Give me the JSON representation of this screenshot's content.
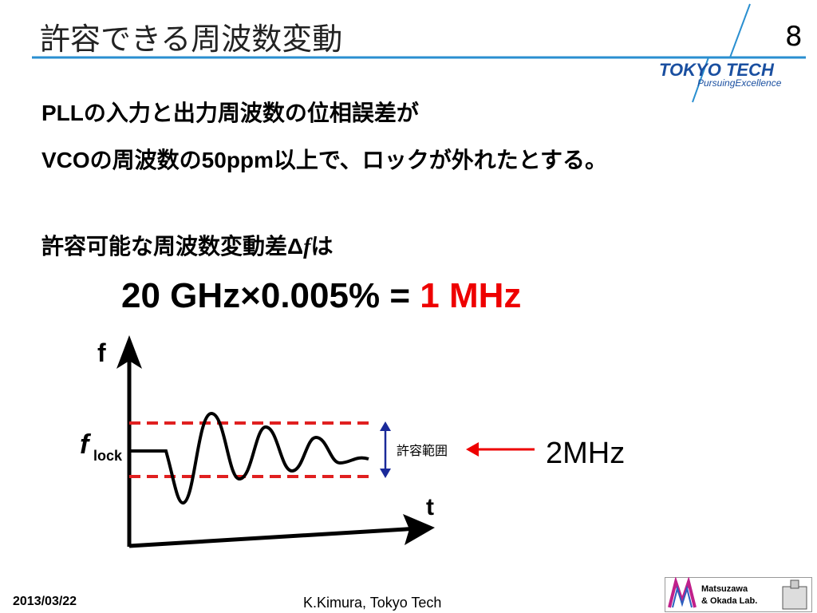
{
  "header": {
    "title": "許容できる周波数変動",
    "page_number": "8",
    "logo": {
      "name": "TOKYO TECH",
      "tagline": "PursuingExcellence"
    }
  },
  "body": {
    "line1": "PLLの入力と出力周波数の位相誤差が",
    "line2": "VCOの周波数の50ppm以上で、ロックが外れたとする。",
    "line3": {
      "prefix": "許容可能な周波数変動差Δ",
      "variable": "f",
      "suffix": "は"
    },
    "formula": {
      "expression": "20 GHz×0.005% = ",
      "result": "1 MHz"
    }
  },
  "diagram": {
    "y_axis_label": "f",
    "x_axis_label": "t",
    "lock_label": {
      "symbol": "f",
      "subscript": "lock"
    },
    "range_label": "許容範囲",
    "range_value": "2MHz"
  },
  "footer": {
    "date": "2013/03/22",
    "author": "K.Kimura, Tokyo Tech",
    "lab_logo": {
      "line1": "Matsuzawa",
      "line2": "& Okada Lab."
    }
  }
}
